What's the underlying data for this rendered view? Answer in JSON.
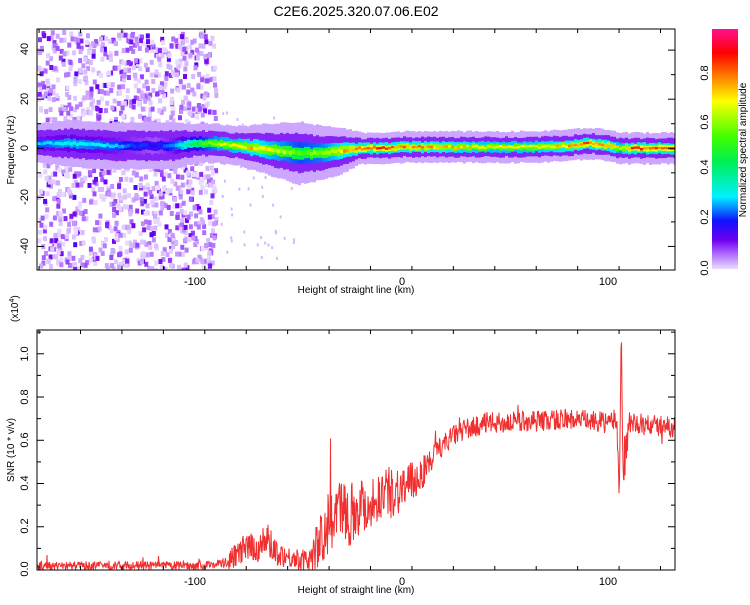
{
  "title": "C2E6.2025.320.07.06.E02",
  "chart_data": [
    {
      "type": "heatmap",
      "title": "C2E6.2025.320.07.06.E02",
      "xlabel": "Height of straight line (km)",
      "ylabel": "Frequency (Hz)",
      "xlim": [
        -176,
        132
      ],
      "ylim": [
        -49.6,
        48.6
      ],
      "xticks": [
        "-100",
        "0",
        "100"
      ],
      "xtick_values": [
        -100,
        0,
        100
      ],
      "yticks": [
        "40",
        "20",
        "0",
        "-20",
        "-40"
      ],
      "ytick_values": [
        40,
        20,
        0,
        -20,
        -40
      ],
      "colorbar": {
        "label": "Normalized spectral amplitude",
        "range": [
          0,
          1
        ],
        "ticks": [
          "0.0",
          "0.2",
          "0.4",
          "0.6",
          "0.8"
        ],
        "tick_values": [
          0,
          0.2,
          0.4,
          0.6,
          0.8
        ]
      },
      "noise_region": {
        "x_range": [
          -176,
          -90
        ],
        "freq_range": [
          -49.6,
          48.6
        ],
        "amplitude": 0.1
      },
      "band": {
        "x": [
          -176,
          -160,
          -140,
          -120,
          -110,
          -100,
          -90,
          -80,
          -70,
          -60,
          -50,
          -40,
          -30,
          -20,
          -10,
          0,
          10,
          20,
          40,
          60,
          80,
          90,
          100,
          105,
          110,
          120,
          132
        ],
        "center_hz": [
          2,
          2,
          1,
          1,
          1,
          2,
          2,
          1,
          0,
          -1,
          -2,
          -2,
          -1,
          0,
          0,
          0.5,
          0.5,
          0.5,
          0.5,
          0.5,
          1,
          2,
          1,
          0,
          0,
          0,
          0
        ],
        "width_hz": [
          5,
          6,
          6,
          6,
          6,
          5,
          5,
          5,
          6,
          7,
          8,
          7,
          6,
          4,
          4,
          4,
          4,
          4,
          4,
          4,
          4,
          4,
          4,
          4,
          4,
          4,
          4
        ],
        "peak": [
          0.3,
          0.35,
          0.3,
          0.2,
          0.3,
          0.5,
          0.7,
          0.75,
          0.8,
          0.7,
          0.6,
          0.65,
          0.8,
          0.9,
          0.9,
          0.85,
          0.85,
          0.8,
          0.75,
          0.75,
          0.8,
          0.9,
          0.85,
          0.7,
          0.9,
          0.9,
          0.95
        ]
      }
    },
    {
      "type": "line",
      "xlabel": "Height of straight line (km)",
      "ylabel": "SNR (10 * v/v)",
      "y_multiplier": "(x10",
      "y_multiplier_exp": "4",
      "y_multiplier_close": ")",
      "xlim": [
        -176,
        132
      ],
      "ylim": [
        0,
        1.11
      ],
      "xticks": [
        "-100",
        "0",
        "100"
      ],
      "xtick_values": [
        -100,
        0,
        100
      ],
      "yticks": [
        "0.0",
        "0.2",
        "0.4",
        "0.6",
        "0.8",
        "1.0"
      ],
      "ytick_values": [
        0,
        0.2,
        0.4,
        0.6,
        0.8,
        1.0
      ],
      "series": [
        {
          "name": "SNR",
          "color": "#f03030",
          "x": [
            -176,
            -165,
            -150,
            -135,
            -120,
            -105,
            -95,
            -90,
            -85,
            -80,
            -75,
            -70,
            -65,
            -60,
            -55,
            -50,
            -45,
            -40,
            -35,
            -30,
            -25,
            -20,
            -15,
            -10,
            -5,
            0,
            5,
            10,
            15,
            20,
            25,
            30,
            35,
            40,
            50,
            60,
            70,
            80,
            90,
            100,
            104,
            105,
            106,
            107,
            110,
            120,
            132
          ],
          "y": [
            0.02,
            0.02,
            0.02,
            0.02,
            0.02,
            0.02,
            0.02,
            0.03,
            0.03,
            0.07,
            0.1,
            0.1,
            0.14,
            0.08,
            0.06,
            0.05,
            0.04,
            0.12,
            0.22,
            0.28,
            0.26,
            0.3,
            0.3,
            0.35,
            0.36,
            0.38,
            0.4,
            0.45,
            0.52,
            0.58,
            0.62,
            0.65,
            0.66,
            0.68,
            0.68,
            0.69,
            0.69,
            0.7,
            0.69,
            0.68,
            0.7,
            0.3,
            1.1,
            0.45,
            0.68,
            0.67,
            0.66
          ],
          "noise": [
            0.02,
            0.02,
            0.02,
            0.02,
            0.02,
            0.02,
            0.02,
            0.02,
            0.03,
            0.06,
            0.07,
            0.07,
            0.08,
            0.06,
            0.05,
            0.05,
            0.05,
            0.12,
            0.15,
            0.15,
            0.15,
            0.14,
            0.12,
            0.12,
            0.12,
            0.12,
            0.1,
            0.08,
            0.06,
            0.05,
            0.05,
            0.05,
            0.05,
            0.05,
            0.05,
            0.05,
            0.05,
            0.05,
            0.05,
            0.05,
            0.05,
            0.1,
            0.1,
            0.1,
            0.05,
            0.05,
            0.05
          ]
        }
      ]
    }
  ]
}
